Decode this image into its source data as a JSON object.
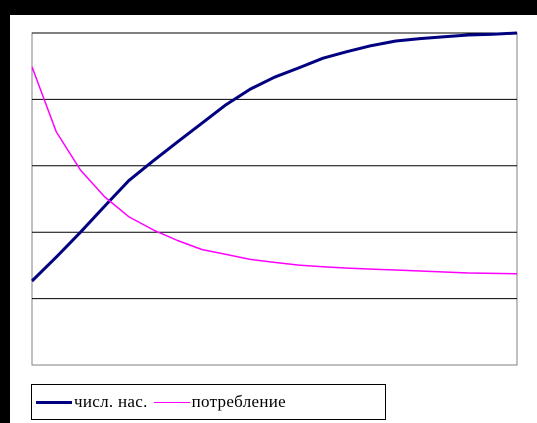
{
  "colors": {
    "background": "#000000",
    "panel": "#ffffff",
    "grid": "#000000",
    "plot_border": "#808080"
  },
  "chart_data": {
    "type": "line",
    "xlim": [
      0,
      100
    ],
    "ylim": [
      0,
      100
    ],
    "y_gridlines": [
      20,
      40,
      60,
      80,
      100
    ],
    "grid": true,
    "legend_position": "bottom-left",
    "series": [
      {
        "name": "числ. нас.",
        "color": "#000080",
        "width": 3,
        "x": [
          0,
          5,
          10,
          15,
          20,
          25,
          30,
          35,
          40,
          45,
          50,
          55,
          60,
          65,
          70,
          75,
          80,
          85,
          90,
          95,
          100
        ],
        "values": [
          25.3,
          32.5,
          40,
          47.9,
          55.6,
          61.5,
          67.2,
          72.8,
          78.4,
          83.1,
          86.7,
          89.5,
          92.4,
          94.4,
          96.2,
          97.6,
          98.3,
          98.9,
          99.4,
          99.6,
          100
        ]
      },
      {
        "name": "потребление",
        "color": "#ff00ff",
        "width": 1.5,
        "x": [
          0,
          5,
          10,
          15,
          20,
          25,
          30,
          35,
          40,
          45,
          50,
          55,
          60,
          65,
          70,
          75,
          80,
          85,
          90,
          95,
          100
        ],
        "values": [
          89.8,
          70.2,
          58.7,
          50.6,
          44.6,
          40.7,
          37.5,
          34.8,
          33.3,
          31.8,
          30.9,
          30.1,
          29.6,
          29.2,
          28.9,
          28.6,
          28.3,
          28.0,
          27.7,
          27.6,
          27.5
        ]
      }
    ]
  }
}
